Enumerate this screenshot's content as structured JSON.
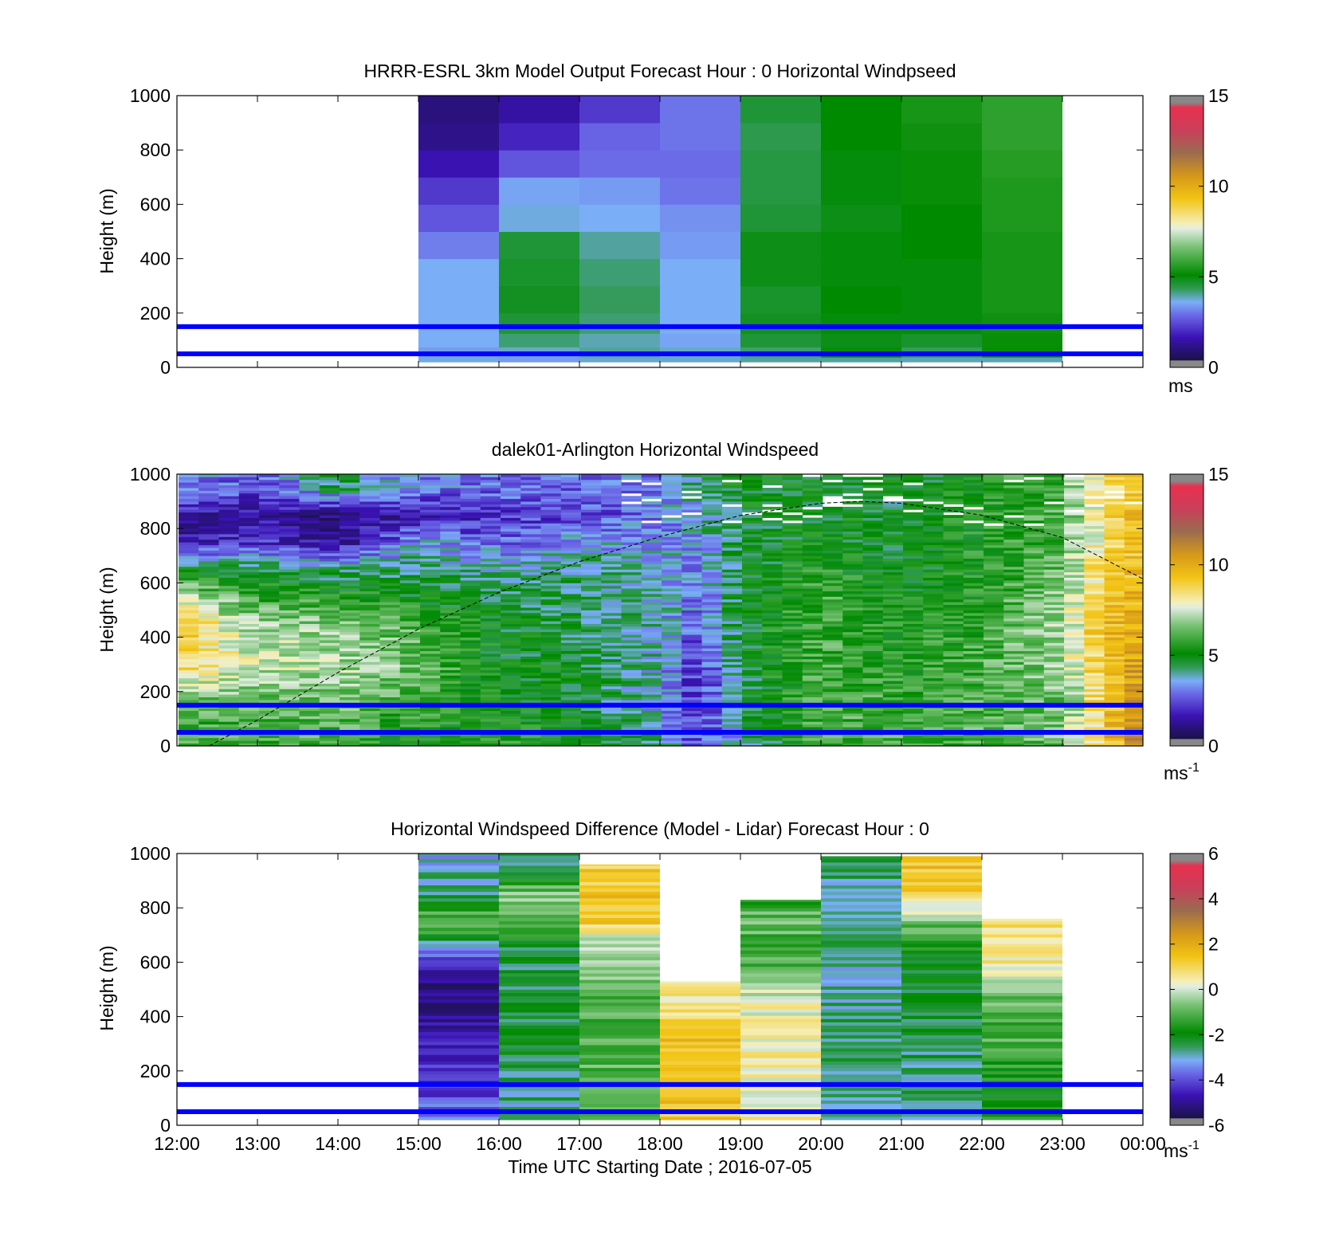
{
  "figure": {
    "xlabel": "Time UTC  Starting Date ; 2016-07-05",
    "boundary_lines_m": [
      50,
      150
    ],
    "boundary_line_color": "#0000ff"
  },
  "chart_data": [
    {
      "type": "heatmap",
      "title": "HRRR-ESRL 3km Model Output   Forecast Hour : 0 Horizontal Windpseed",
      "ylabel": "Height (m)",
      "x_range": [
        "12:00",
        "00:00"
      ],
      "xlim_hours": [
        12,
        24
      ],
      "ylim": [
        0,
        1000
      ],
      "y_ticks": [
        "0",
        "200",
        "400",
        "600",
        "800",
        "1000"
      ],
      "x_ticks": [
        "12:00",
        "13:00",
        "14:00",
        "15:00",
        "16:00",
        "17:00",
        "18:00",
        "19:00",
        "20:00",
        "21:00",
        "22:00",
        "23:00",
        "00:00"
      ],
      "x_tick_labels_visible": false,
      "colorbar": {
        "range": [
          0,
          15
        ],
        "ticks": [
          "0",
          "5",
          "10",
          "15"
        ],
        "unit": "ms",
        "unit_sup": ""
      },
      "columns_start_hours": [
        15,
        16,
        17,
        18,
        19,
        20,
        21,
        22
      ],
      "column_width_hours": 1,
      "z_levels_m": [
        25,
        50,
        100,
        150,
        250,
        350,
        450,
        550,
        650,
        750,
        850,
        950
      ],
      "z_values": [
        [
          3.7,
          3.4,
          3.8,
          3.8,
          4.0,
          4.0,
          3.9,
          3.9
        ],
        [
          3.4,
          3.8,
          4.0,
          3.8,
          4.2,
          5.0,
          4.3,
          5.0
        ],
        [
          3.6,
          4.2,
          3.9,
          3.5,
          4.6,
          4.9,
          4.7,
          5.2
        ],
        [
          3.6,
          4.6,
          4.2,
          3.6,
          4.8,
          5.0,
          5.0,
          5.3
        ],
        [
          3.6,
          4.8,
          4.3,
          3.6,
          4.7,
          5.1,
          5.0,
          5.4
        ],
        [
          3.6,
          4.7,
          4.2,
          3.6,
          4.9,
          5.0,
          5.0,
          5.4
        ],
        [
          3.1,
          4.6,
          4.0,
          3.4,
          4.9,
          5.0,
          5.1,
          5.4
        ],
        [
          2.6,
          3.7,
          3.6,
          3.3,
          4.6,
          4.9,
          5.1,
          5.5
        ],
        [
          2.2,
          3.5,
          3.4,
          3.0,
          4.5,
          5.0,
          5.2,
          5.5
        ],
        [
          1.6,
          2.6,
          2.9,
          2.9,
          4.5,
          5.0,
          5.2,
          5.6
        ],
        [
          1.0,
          1.9,
          2.8,
          3.0,
          4.4,
          5.1,
          5.3,
          5.7
        ],
        [
          0.8,
          1.4,
          2.2,
          3.0,
          4.6,
          5.1,
          5.4,
          5.7
        ]
      ]
    },
    {
      "type": "heatmap",
      "title": "dalek01-Arlington  Horizontal Windspeed",
      "ylabel": "Height (m)",
      "x_range": [
        "12:00",
        "00:00"
      ],
      "xlim_hours": [
        12,
        24
      ],
      "ylim": [
        0,
        1000
      ],
      "y_ticks": [
        "0",
        "200",
        "400",
        "600",
        "800",
        "1000"
      ],
      "x_ticks": [
        "12:00",
        "13:00",
        "14:00",
        "15:00",
        "16:00",
        "17:00",
        "18:00",
        "19:00",
        "20:00",
        "21:00",
        "22:00",
        "23:00",
        "00:00"
      ],
      "x_tick_labels_visible": false,
      "colorbar": {
        "range": [
          0,
          15
        ],
        "ticks": [
          "0",
          "5",
          "10",
          "15"
        ],
        "unit": "ms",
        "unit_sup": "-1"
      },
      "profile_column_width_hours": 0.25,
      "profile_times_hours": [
        12.0,
        13.0,
        14.0,
        15.0,
        16.0,
        17.0,
        18.0,
        18.5,
        19.0,
        20.0,
        21.0,
        22.0,
        23.0,
        23.5,
        24.0
      ],
      "profile_heights_m": [
        25,
        150,
        300,
        450,
        550,
        650,
        750,
        850,
        950
      ],
      "profile_values": [
        [
          5.8,
          6.0,
          6.0,
          5.0,
          5.5,
          5.0,
          4.2,
          2.2,
          4.0,
          6.0,
          6.0,
          6.0,
          6.5,
          9.0,
          11.0
        ],
        [
          6.0,
          6.2,
          6.5,
          6.0,
          5.0,
          4.8,
          3.5,
          2.0,
          4.4,
          6.0,
          6.0,
          6.2,
          6.5,
          9.0,
          11.0
        ],
        [
          9.0,
          7.5,
          7.2,
          6.5,
          5.0,
          4.8,
          3.8,
          2.0,
          4.6,
          6.0,
          5.5,
          6.0,
          7.0,
          9.2,
          10.5
        ],
        [
          9.0,
          7.0,
          6.8,
          6.0,
          4.8,
          4.5,
          3.9,
          2.6,
          4.8,
          6.0,
          5.2,
          5.8,
          7.0,
          9.4,
          10.2
        ],
        [
          7.5,
          5.8,
          5.5,
          5.0,
          4.5,
          4.4,
          3.8,
          3.0,
          4.7,
          6.0,
          5.0,
          5.6,
          6.8,
          9.0,
          9.8
        ],
        [
          5.0,
          4.5,
          4.2,
          4.4,
          3.9,
          4.2,
          3.8,
          3.2,
          4.6,
          5.6,
          4.8,
          5.4,
          6.5,
          8.8,
          9.5
        ],
        [
          1.5,
          2.2,
          1.2,
          3.5,
          2.8,
          3.5,
          3.5,
          3.5,
          4.5,
          5.0,
          4.8,
          5.4,
          6.2,
          8.5,
          9.5
        ],
        [
          1.2,
          1.4,
          1.0,
          1.4,
          2.0,
          2.4,
          3.0,
          3.6,
          4.8,
          5.0,
          4.8,
          5.4,
          6.2,
          8.5,
          9.5
        ],
        [
          3.5,
          2.5,
          4.5,
          3.0,
          3.0,
          2.8,
          3.2,
          4.5,
          5.0,
          5.0,
          4.7,
          5.4,
          6.2,
          8.5,
          9.5
        ]
      ],
      "curve": {
        "style": "dashed",
        "x_hours": [
          12.4,
          13.0,
          14.0,
          15.0,
          16.0,
          17.0,
          18.0,
          19.0,
          20.0,
          20.5,
          21.0,
          22.0,
          23.0,
          24.0
        ],
        "y_m": [
          0,
          95,
          270,
          430,
          565,
          678,
          770,
          848,
          893,
          900,
          893,
          849,
          767,
          615
        ]
      }
    },
    {
      "type": "heatmap",
      "title": "Horizontal Windspeed Difference (Model - Lidar) Forecast Hour : 0",
      "ylabel": "Height (m)",
      "xlabel": "Time UTC  Starting Date ; 2016-07-05",
      "x_range": [
        "12:00",
        "00:00"
      ],
      "xlim_hours": [
        12,
        24
      ],
      "ylim": [
        0,
        1000
      ],
      "y_ticks": [
        "0",
        "200",
        "400",
        "600",
        "800",
        "1000"
      ],
      "x_ticks": [
        "12:00",
        "13:00",
        "14:00",
        "15:00",
        "16:00",
        "17:00",
        "18:00",
        "19:00",
        "20:00",
        "21:00",
        "22:00",
        "23:00",
        "00:00"
      ],
      "x_tick_labels_visible": true,
      "colorbar": {
        "range": [
          -6,
          6
        ],
        "ticks": [
          "-6",
          "-4",
          "-2",
          "0",
          "2",
          "4",
          "6"
        ],
        "unit": "ms",
        "unit_sup": "-1"
      },
      "columns_start_hours": [
        15,
        16,
        17,
        18,
        19,
        20,
        21,
        22
      ],
      "column_width_hours": 1,
      "column_top_m": [
        1000,
        1000,
        960,
        530,
        830,
        990,
        990,
        760
      ],
      "profile_heights_m": [
        25,
        150,
        300,
        450,
        550,
        650,
        750,
        850,
        950
      ],
      "profile_values": [
        [
          -3.8,
          -2.8,
          -1.0,
          1.5,
          0.3,
          -2.8,
          -2.6,
          -1.8
        ],
        [
          -4.2,
          -2.6,
          -1.2,
          1.2,
          0.2,
          -2.6,
          -2.6,
          -1.8
        ],
        [
          -4.5,
          -2.2,
          -1.0,
          1.5,
          0.5,
          -2.5,
          -2.4,
          -1.2
        ],
        [
          -5.4,
          -2.4,
          -1.2,
          0.5,
          0.2,
          -2.8,
          -2.2,
          -1.0
        ],
        [
          -5.0,
          -2.6,
          -0.8,
          null,
          -0.8,
          -2.9,
          -2.2,
          0.3
        ],
        [
          -3.2,
          -2.2,
          -0.5,
          null,
          -1.2,
          -2.7,
          -1.6,
          0.6
        ],
        [
          -0.6,
          -1.0,
          1.2,
          null,
          -0.9,
          null,
          -0.8,
          null
        ],
        [
          -2.5,
          -0.5,
          1.4,
          null,
          -1.5,
          null,
          1.2,
          null
        ],
        [
          -3.0,
          -2.8,
          1.2,
          null,
          null,
          null,
          1.5,
          null
        ]
      ]
    }
  ]
}
